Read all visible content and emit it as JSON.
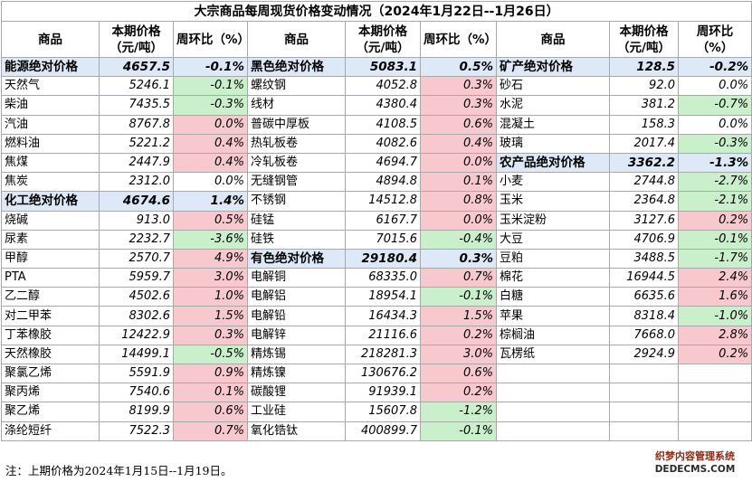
{
  "title": "大宗商品每周现货价格变动情况（2024年1月22日--1月26日）",
  "headers": {
    "name": "商品",
    "price": "本期价格（元/吨）",
    "change": "周环比（%）"
  },
  "rows": [
    [
      [
        "能源绝对价格",
        "4657.5",
        "-0.1%",
        "abs"
      ],
      [
        "黑色绝对价格",
        "5083.1",
        "0.5%",
        "abs"
      ],
      [
        "矿产绝对价格",
        "128.5",
        "-0.2%",
        "abs"
      ]
    ],
    [
      [
        "天然气",
        "5246.1",
        "-0.1%",
        "neg"
      ],
      [
        "螺纹钢",
        "4052.8",
        "0.3%",
        "pos"
      ],
      [
        "砂石",
        "92.0",
        "0.0%",
        ""
      ]
    ],
    [
      [
        "柴油",
        "7435.5",
        "-0.3%",
        "neg"
      ],
      [
        "线材",
        "4380.4",
        "0.3%",
        "pos"
      ],
      [
        "水泥",
        "381.2",
        "-0.7%",
        "neg"
      ]
    ],
    [
      [
        "汽油",
        "8767.8",
        "0.0%",
        "pos"
      ],
      [
        "普碳中厚板",
        "4108.5",
        "0.6%",
        "pos"
      ],
      [
        "混凝土",
        "158.3",
        "0.0%",
        ""
      ]
    ],
    [
      [
        "燃料油",
        "5221.2",
        "0.4%",
        "pos"
      ],
      [
        "热轧板卷",
        "4082.6",
        "0.4%",
        "pos"
      ],
      [
        "玻璃",
        "2017.4",
        "-0.3%",
        "neg"
      ]
    ],
    [
      [
        "焦煤",
        "2447.9",
        "0.4%",
        "pos"
      ],
      [
        "冷轧板卷",
        "4694.7",
        "0.0%",
        "pos"
      ],
      [
        "农产品绝对价格",
        "3362.2",
        "-1.3%",
        "abs"
      ]
    ],
    [
      [
        "焦炭",
        "2312.0",
        "0.0%",
        ""
      ],
      [
        "无缝钢管",
        "4894.8",
        "0.1%",
        "pos"
      ],
      [
        "小麦",
        "2744.8",
        "-2.7%",
        "neg"
      ]
    ],
    [
      [
        "化工绝对价格",
        "4674.6",
        "1.4%",
        "abs"
      ],
      [
        "不锈钢",
        "14512.8",
        "0.8%",
        "pos"
      ],
      [
        "玉米",
        "2364.8",
        "-2.1%",
        "neg"
      ]
    ],
    [
      [
        "烧碱",
        "913.0",
        "0.5%",
        "pos"
      ],
      [
        "硅锰",
        "6167.7",
        "0.0%",
        "pos"
      ],
      [
        "玉米淀粉",
        "3127.6",
        "0.2%",
        "pos"
      ]
    ],
    [
      [
        "尿素",
        "2232.7",
        "-3.6%",
        "neg"
      ],
      [
        "硅铁",
        "7015.6",
        "-0.4%",
        "neg"
      ],
      [
        "大豆",
        "4706.9",
        "-0.1%",
        "neg"
      ]
    ],
    [
      [
        "甲醇",
        "2570.7",
        "4.9%",
        "pos"
      ],
      [
        "有色绝对价格",
        "29180.4",
        "0.3%",
        "abs"
      ],
      [
        "豆粕",
        "3488.5",
        "-1.7%",
        "neg"
      ]
    ],
    [
      [
        "PTA",
        "5959.7",
        "3.0%",
        "pos"
      ],
      [
        "电解铜",
        "68335.0",
        "0.7%",
        "pos"
      ],
      [
        "棉花",
        "16944.5",
        "2.4%",
        "pos"
      ]
    ],
    [
      [
        "乙二醇",
        "4502.6",
        "1.0%",
        "pos"
      ],
      [
        "电解铝",
        "18954.1",
        "-0.1%",
        "neg"
      ],
      [
        "白糖",
        "6635.6",
        "1.6%",
        "pos"
      ]
    ],
    [
      [
        "对二甲苯",
        "8302.6",
        "1.5%",
        "pos"
      ],
      [
        "电解铅",
        "16434.3",
        "1.5%",
        "pos"
      ],
      [
        "苹果",
        "8318.4",
        "-1.0%",
        "neg"
      ]
    ],
    [
      [
        "丁苯橡胶",
        "12422.9",
        "0.3%",
        "pos"
      ],
      [
        "电解锌",
        "21116.6",
        "0.2%",
        "pos"
      ],
      [
        "棕榈油",
        "7668.0",
        "2.8%",
        "pos"
      ]
    ],
    [
      [
        "天然橡胶",
        "14499.1",
        "-0.5%",
        "neg"
      ],
      [
        "精炼锡",
        "218281.3",
        "3.0%",
        "pos"
      ],
      [
        "瓦楞纸",
        "2924.9",
        "0.2%",
        "pos"
      ]
    ],
    [
      [
        "聚氯乙烯",
        "5591.9",
        "0.9%",
        "pos"
      ],
      [
        "精炼镍",
        "130676.2",
        "0.6%",
        "pos"
      ],
      [
        "",
        "",
        "",
        ""
      ]
    ],
    [
      [
        "聚丙烯",
        "7540.6",
        "0.1%",
        "pos"
      ],
      [
        "碳酸锂",
        "91939.1",
        "0.2%",
        "pos"
      ],
      [
        "",
        "",
        "",
        ""
      ]
    ],
    [
      [
        "聚乙烯",
        "8199.9",
        "0.6%",
        "pos"
      ],
      [
        "工业硅",
        "15607.8",
        "-1.2%",
        "neg"
      ],
      [
        "",
        "",
        "",
        ""
      ]
    ],
    [
      [
        "涤纶短纤",
        "7522.3",
        "0.7%",
        "pos"
      ],
      [
        "氧化锆钛",
        "400899.7",
        "-0.1%",
        "neg"
      ],
      [
        "",
        "",
        "",
        ""
      ]
    ]
  ],
  "note": "注：上期价格为2024年1月15日--1月19日。",
  "watermark": {
    "line1": "织梦内容管理系统",
    "line2": "DEDECMS.COM"
  }
}
